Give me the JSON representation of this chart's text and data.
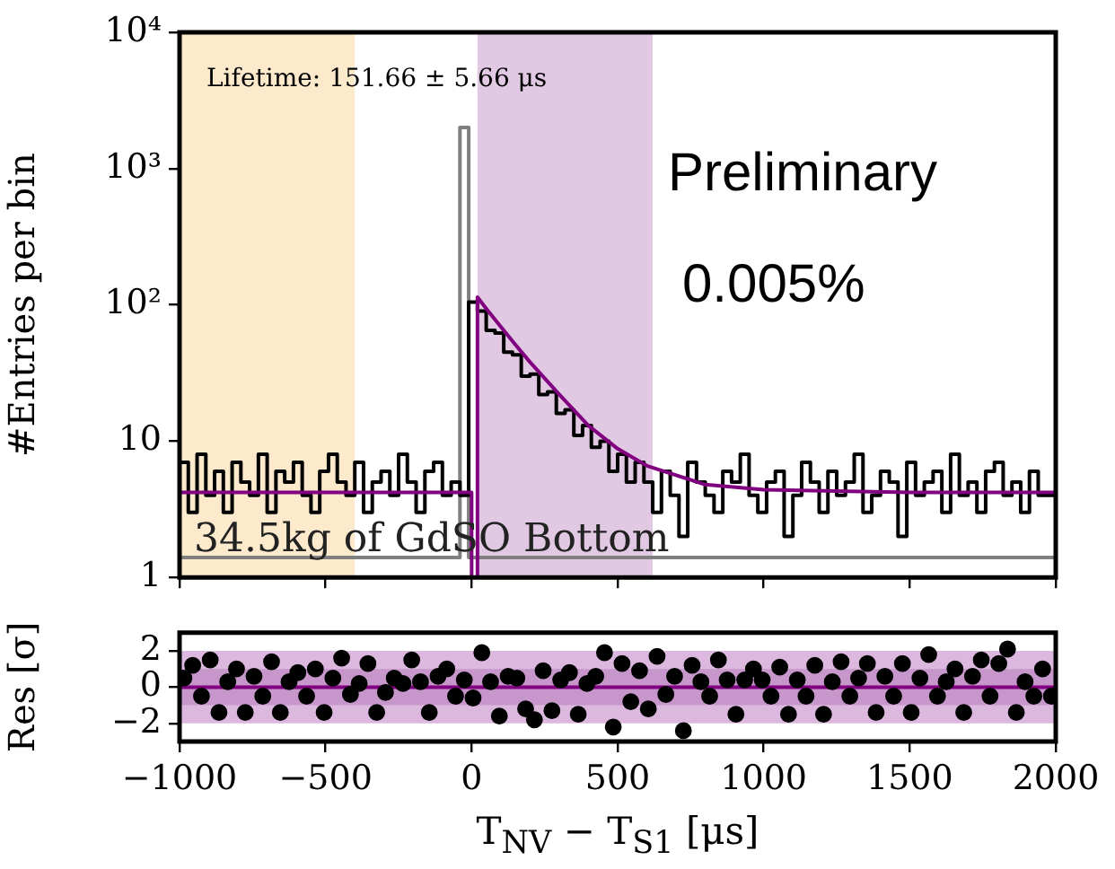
{
  "chart_data": [
    {
      "type": "step",
      "ylabel": "#Entries per bin",
      "log": "y",
      "grid": false,
      "legend": false,
      "tick_labels": "y",
      "xlim": [
        -1000,
        2000
      ],
      "xticks": [
        -1000,
        -500,
        0,
        500,
        1000,
        1500,
        2000
      ],
      "ylim": [
        1,
        10000
      ],
      "yticks": [
        1,
        10,
        {
          "value": 100,
          "label": "10²"
        },
        {
          "value": 1000,
          "label": "10³"
        },
        {
          "value": 10000,
          "label": "10⁴"
        }
      ],
      "x": [
        -1000,
        -970,
        -940,
        -910,
        -880,
        -850,
        -820,
        -790,
        -760,
        -730,
        -700,
        -670,
        -640,
        -610,
        -580,
        -550,
        -520,
        -490,
        -460,
        -430,
        -400,
        -370,
        -340,
        -310,
        -280,
        -250,
        -220,
        -190,
        -160,
        -130,
        -100,
        -70,
        -40,
        -10,
        20,
        50,
        80,
        110,
        140,
        170,
        200,
        230,
        260,
        290,
        320,
        350,
        380,
        410,
        440,
        470,
        500,
        530,
        560,
        590,
        620,
        650,
        680,
        710,
        740,
        770,
        800,
        830,
        860,
        890,
        920,
        950,
        980,
        1010,
        1040,
        1070,
        1100,
        1130,
        1160,
        1190,
        1220,
        1250,
        1280,
        1310,
        1340,
        1370,
        1400,
        1430,
        1460,
        1490,
        1520,
        1550,
        1580,
        1610,
        1640,
        1670,
        1700,
        1730,
        1760,
        1790,
        1820,
        1850,
        1880,
        1910,
        1940,
        1970,
        2000
      ],
      "bands": [
        {
          "axis": "x",
          "from": -1000,
          "to": -400,
          "color": "#fde9cc"
        },
        {
          "axis": "x",
          "from": 20,
          "to": 620,
          "color": "#e2c9e3"
        }
      ],
      "series": [
        {
          "color": "#808080",
          "values": [
            1.4,
            1.4,
            1.4,
            1.4,
            1.4,
            1.4,
            1.4,
            1.4,
            1.4,
            1.4,
            1.4,
            1.4,
            1.4,
            1.4,
            1.4,
            1.4,
            1.4,
            1.4,
            1.4,
            1.4,
            1.4,
            1.4,
            1.4,
            1.4,
            1.4,
            1.4,
            1.4,
            1.4,
            1.4,
            1.4,
            1.4,
            1.4,
            1.4,
            2000,
            1.4,
            1.4,
            1.4,
            1.4,
            1.4,
            1.4,
            1.4,
            1.4,
            1.4,
            1.4,
            1.4,
            1.4,
            1.4,
            1.4,
            1.4,
            1.4,
            1.4,
            1.4,
            1.4,
            1.4,
            1.4,
            1.4,
            1.4,
            1.4,
            1.4,
            1.4,
            1.4,
            1.4,
            1.4,
            1.4,
            1.4,
            1.4,
            1.4,
            1.4,
            1.4,
            1.4,
            1.4,
            1.4,
            1.4,
            1.4,
            1.4,
            1.4,
            1.4,
            1.4,
            1.4,
            1.4,
            1.4,
            1.4,
            1.4,
            1.4,
            1.4,
            1.4,
            1.4,
            1.4,
            1.4,
            1.4,
            1.4,
            1.4,
            1.4,
            1.4,
            1.4,
            1.4,
            1.4,
            1.4,
            1.4,
            1.4,
            1.4
          ]
        },
        {
          "color": "#000000",
          "values": [
            5,
            7,
            3,
            8,
            4,
            6,
            3,
            7,
            5,
            4,
            8,
            3,
            6,
            5,
            7,
            4,
            3,
            6,
            8,
            5,
            4,
            7,
            3,
            5,
            6,
            4,
            8,
            5,
            3,
            6,
            7,
            4,
            5,
            4,
            105,
            90,
            65,
            62,
            45,
            43,
            30,
            31,
            22,
            23,
            16,
            17,
            11,
            13,
            9,
            10,
            6,
            8,
            5,
            7,
            5,
            3,
            6,
            4,
            2,
            7,
            5,
            4,
            3,
            6,
            5,
            8,
            4,
            3,
            5,
            6,
            2,
            4,
            7,
            5,
            3,
            6,
            4,
            5,
            8,
            3,
            4,
            6,
            5,
            2,
            7,
            4,
            5,
            6,
            3,
            8,
            4,
            5,
            3,
            6,
            7,
            4,
            5,
            3,
            6,
            4,
            4
          ]
        },
        {
          "type": "line",
          "color": "#800080",
          "x": [
            -1000,
            0,
            0,
            20,
            20,
            50,
            100,
            150,
            200,
            300,
            400,
            500,
            600,
            800,
            1000,
            1500,
            2000
          ],
          "values": [
            4.2,
            4.2,
            1,
            1,
            114,
            94,
            69,
            51,
            38,
            22,
            13,
            8.8,
            6.6,
            4.8,
            4.4,
            4.2,
            4.2
          ]
        }
      ],
      "annotations": [
        "Lifetime: 151.66 ± 5.66 μs",
        "Preliminary",
        "0.005%",
        "34.5kg of GdSO Bottom"
      ]
    },
    {
      "type": "scatter",
      "xlabel": "T$_{NV}$ − T$_{S1}$ [μs]",
      "ylabel": "Res [σ]",
      "grid": false,
      "legend": false,
      "marker": "circle",
      "xlim": [
        -1000,
        2000
      ],
      "xticks": [
        {
          "value": -1000,
          "label": "−1000"
        },
        {
          "value": -500,
          "label": "−500"
        },
        0,
        500,
        1000,
        1500,
        2000
      ],
      "ylim": [
        -3,
        3
      ],
      "yticks": [
        {
          "value": -2,
          "label": "−2"
        },
        0,
        2
      ],
      "bands": [
        {
          "axis": "y",
          "from": -2,
          "to": 2,
          "color": "#dcb8df"
        },
        {
          "axis": "y",
          "from": -1,
          "to": 1,
          "color": "#c797cc"
        }
      ],
      "ref_lines": [
        {
          "axis": "y",
          "value": 0,
          "color": "#800080"
        }
      ],
      "x": [
        -985,
        -955,
        -925,
        -895,
        -865,
        -835,
        -805,
        -775,
        -745,
        -715,
        -685,
        -655,
        -625,
        -595,
        -565,
        -535,
        -505,
        -475,
        -445,
        -415,
        -385,
        -355,
        -325,
        -295,
        -265,
        -235,
        -205,
        -175,
        -145,
        -115,
        -85,
        -55,
        -25,
        5,
        35,
        65,
        95,
        125,
        155,
        185,
        215,
        245,
        275,
        305,
        335,
        365,
        395,
        425,
        455,
        485,
        515,
        545,
        575,
        605,
        635,
        665,
        695,
        725,
        755,
        785,
        815,
        845,
        875,
        905,
        935,
        965,
        995,
        1025,
        1055,
        1085,
        1115,
        1145,
        1175,
        1205,
        1235,
        1265,
        1295,
        1325,
        1355,
        1385,
        1415,
        1445,
        1475,
        1505,
        1535,
        1565,
        1595,
        1625,
        1655,
        1685,
        1715,
        1745,
        1775,
        1805,
        1835,
        1865,
        1895,
        1925,
        1955,
        1985
      ],
      "series": [
        {
          "color": "#000000",
          "values": [
            0.5,
            1.2,
            -0.5,
            1.5,
            -1.4,
            0.3,
            1.0,
            -1.4,
            0.6,
            -0.5,
            1.4,
            -1.4,
            0.3,
            0.8,
            -0.5,
            1.0,
            -1.4,
            0.5,
            1.6,
            -0.4,
            0.2,
            1.3,
            -1.4,
            -0.3,
            0.5,
            0.2,
            1.5,
            0.3,
            -1.4,
            0.6,
            1.0,
            -0.5,
            0.4,
            -0.6,
            1.9,
            0.3,
            -1.6,
            0.6,
            0.5,
            -1.2,
            -1.8,
            0.9,
            -1.3,
            0.4,
            0.8,
            -1.5,
            0.2,
            0.6,
            1.9,
            -2.2,
            1.3,
            -0.8,
            0.9,
            -1.2,
            1.7,
            -0.4,
            0.6,
            -2.4,
            1.2,
            0.3,
            -0.5,
            1.5,
            0.4,
            -1.5,
            0.4,
            1.0,
            0.4,
            -0.5,
            1.1,
            -1.5,
            0.4,
            -0.5,
            1.2,
            -1.5,
            0.3,
            1.4,
            -0.5,
            0.5,
            1.3,
            -1.4,
            0.6,
            -0.5,
            1.3,
            -1.4,
            0.5,
            1.8,
            -0.5,
            0.3,
            1.0,
            -1.4,
            0.6,
            1.5,
            -0.5,
            1.3,
            2.1,
            -1.4,
            0.3,
            -0.5,
            1.0,
            -0.5
          ]
        }
      ]
    }
  ]
}
